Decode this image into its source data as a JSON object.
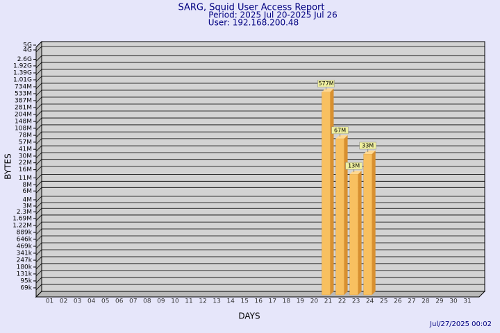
{
  "chart_data": {
    "type": "bar",
    "title": "SARG, Squid User Access Report",
    "subtitles": [
      "Period: 2025 Jul 20-2025 Jul 26",
      "User: 192.168.200.48"
    ],
    "x_label": "DAYS",
    "y_label": "BYTES",
    "annotations": [
      "Jul/27/2025 00:02"
    ],
    "categories": [
      "01",
      "02",
      "03",
      "04",
      "05",
      "06",
      "07",
      "08",
      "09",
      "10",
      "11",
      "12",
      "13",
      "14",
      "15",
      "16",
      "17",
      "18",
      "19",
      "20",
      "21",
      "22",
      "23",
      "24",
      "25",
      "26",
      "27",
      "28",
      "29",
      "30",
      "31"
    ],
    "values": [
      null,
      null,
      null,
      null,
      null,
      null,
      null,
      null,
      null,
      null,
      null,
      null,
      null,
      null,
      null,
      null,
      null,
      null,
      null,
      null,
      577000000,
      67000000,
      13000000,
      33000000,
      null,
      null,
      null,
      null,
      null,
      null,
      null
    ],
    "value_labels": [
      null,
      null,
      null,
      null,
      null,
      null,
      null,
      null,
      null,
      null,
      null,
      null,
      null,
      null,
      null,
      null,
      null,
      null,
      null,
      null,
      "577M",
      "67M",
      "13M",
      "33M",
      null,
      null,
      null,
      null,
      null,
      null,
      null
    ],
    "color": "#f8c060",
    "log_scale": true,
    "grid": true,
    "ylim": [
      50000,
      5000000000
    ],
    "yticks": [
      {
        "value": 69000,
        "label": "69k"
      },
      {
        "value": 95000,
        "label": "95k"
      },
      {
        "value": 131000,
        "label": "131k"
      },
      {
        "value": 180000,
        "label": "180k"
      },
      {
        "value": 247000,
        "label": "247k"
      },
      {
        "value": 341000,
        "label": "341k"
      },
      {
        "value": 469000,
        "label": "469k"
      },
      {
        "value": 646000,
        "label": "646k"
      },
      {
        "value": 889000,
        "label": "889k"
      },
      {
        "value": 1220000,
        "label": "1.22M"
      },
      {
        "value": 1690000,
        "label": "1.69M"
      },
      {
        "value": 2300000,
        "label": "2.3M"
      },
      {
        "value": 3000000,
        "label": "3M"
      },
      {
        "value": 4000000,
        "label": "4M"
      },
      {
        "value": 6000000,
        "label": "6M"
      },
      {
        "value": 8000000,
        "label": "8M"
      },
      {
        "value": 11000000,
        "label": "11M"
      },
      {
        "value": 16000000,
        "label": "16M"
      },
      {
        "value": 22000000,
        "label": "22M"
      },
      {
        "value": 30000000,
        "label": "30M"
      },
      {
        "value": 41000000,
        "label": "41M"
      },
      {
        "value": 57000000,
        "label": "57M"
      },
      {
        "value": 78000000,
        "label": "78M"
      },
      {
        "value": 108000000,
        "label": "108M"
      },
      {
        "value": 148000000,
        "label": "148M"
      },
      {
        "value": 204000000,
        "label": "204M"
      },
      {
        "value": 281000000,
        "label": "281M"
      },
      {
        "value": 387000000,
        "label": "387M"
      },
      {
        "value": 533000000,
        "label": "533M"
      },
      {
        "value": 734000000,
        "label": "734M"
      },
      {
        "value": 1010000000,
        "label": "1.01G"
      },
      {
        "value": 1390000000,
        "label": "1.39G"
      },
      {
        "value": 1920000000,
        "label": "1.92G"
      },
      {
        "value": 2600000000,
        "label": "2.6G"
      },
      {
        "value": 4000000000,
        "label": "4G"
      },
      {
        "value": 5000000000,
        "label": "5G"
      }
    ]
  }
}
